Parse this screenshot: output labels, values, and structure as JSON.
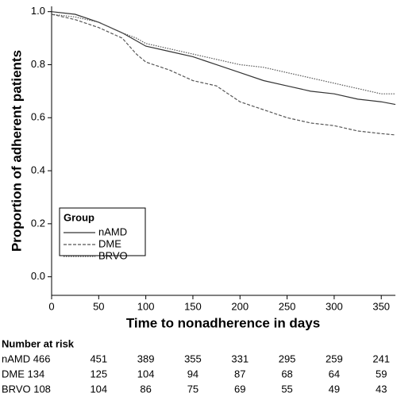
{
  "chart_data": {
    "type": "line",
    "xlabel": "Time to nonadherence in days",
    "ylabel": "Proportion of adherent patients",
    "x": [
      0,
      25,
      50,
      75,
      90,
      100,
      125,
      150,
      175,
      200,
      225,
      250,
      275,
      300,
      325,
      350,
      365
    ],
    "series": [
      {
        "name": "nAMD",
        "color": "#333333",
        "dash": "solid",
        "values": [
          1.0,
          0.99,
          0.96,
          0.92,
          0.89,
          0.87,
          0.85,
          0.83,
          0.8,
          0.77,
          0.74,
          0.72,
          0.7,
          0.69,
          0.67,
          0.66,
          0.65
        ]
      },
      {
        "name": "DME",
        "color": "#555555",
        "dash": "dashed",
        "values": [
          0.99,
          0.97,
          0.94,
          0.9,
          0.84,
          0.81,
          0.78,
          0.74,
          0.72,
          0.66,
          0.63,
          0.6,
          0.58,
          0.57,
          0.55,
          0.54,
          0.535
        ]
      },
      {
        "name": "BRVO",
        "color": "#555555",
        "dash": "dotted",
        "values": [
          0.99,
          0.98,
          0.96,
          0.92,
          0.9,
          0.88,
          0.86,
          0.84,
          0.82,
          0.8,
          0.79,
          0.77,
          0.75,
          0.73,
          0.71,
          0.69,
          0.69
        ]
      }
    ],
    "legend_title": "Group",
    "legend": "lower left",
    "xlim": [
      0,
      365
    ],
    "ylim": [
      -0.07,
      1.02
    ],
    "xticks": [
      0,
      50,
      100,
      150,
      200,
      250,
      300,
      350
    ],
    "yticks": [
      {
        "value": 0,
        "label": "0.0"
      },
      {
        "value": 0.2,
        "label": "0.2"
      },
      {
        "value": 0.4,
        "label": "0.4"
      },
      {
        "value": 0.6,
        "label": "0.6"
      },
      {
        "value": 0.8,
        "label": "0.8"
      },
      {
        "value": 1,
        "label": "1.0"
      }
    ]
  },
  "risk_table": {
    "title": "Number at risk",
    "rows": [
      {
        "label": "nAMD 466",
        "values": [
          451,
          389,
          355,
          331,
          295,
          259,
          241
        ]
      },
      {
        "label": "DME 134",
        "values": [
          125,
          104,
          94,
          87,
          68,
          64,
          59
        ]
      },
      {
        "label": "BRVO 108",
        "values": [
          104,
          86,
          75,
          69,
          55,
          49,
          43
        ]
      }
    ]
  }
}
